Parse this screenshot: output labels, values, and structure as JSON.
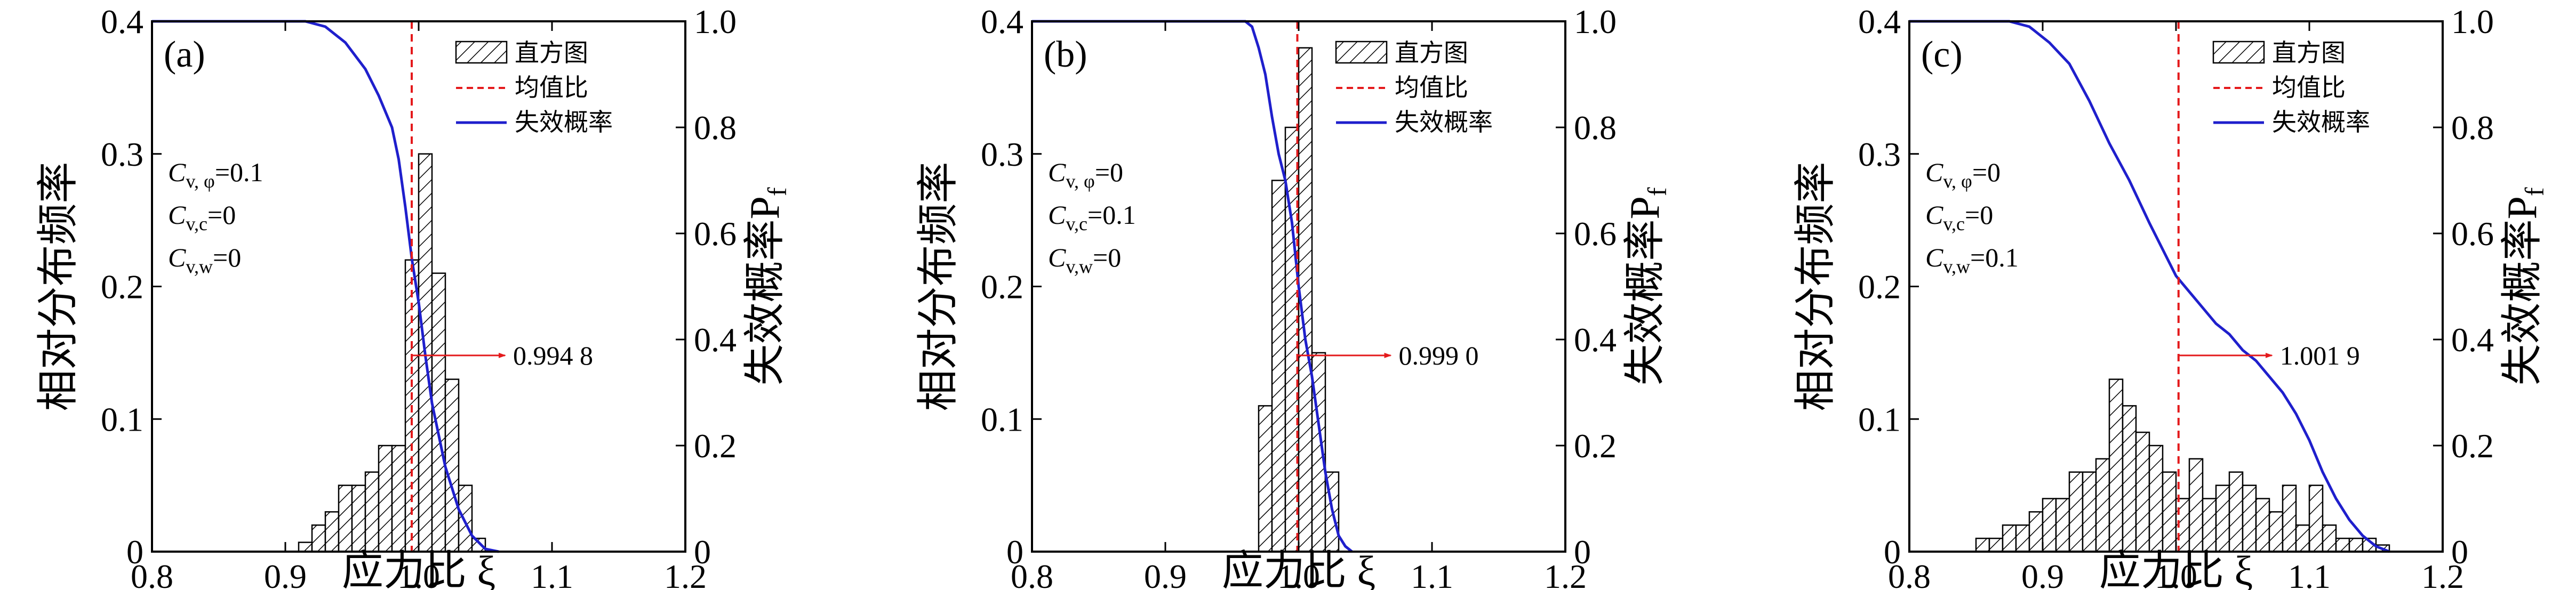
{
  "figure": {
    "xlabel": "应力比 ξ",
    "ylabel_left": "相对分布频率",
    "ylabel_right": "失效概率P",
    "ylabel_right_sub": "f",
    "legend": [
      "直方图",
      "均值比",
      "失效概率"
    ],
    "colors": {
      "histogram": "#000000",
      "mean_line": "#e41a1c",
      "failure_curve": "#1f1fcc",
      "arrow": "#e41a1c"
    },
    "x_ticks": [
      "0.8",
      "0.9",
      "1.0",
      "1.1",
      "1.2"
    ],
    "y_left_ticks": [
      "0",
      "0.1",
      "0.2",
      "0.3",
      "0.4"
    ],
    "y_right_ticks": [
      "0",
      "0.2",
      "0.4",
      "0.6",
      "0.8",
      "1.0"
    ]
  },
  "chart_data": [
    {
      "type": "bar",
      "panel": "(a)",
      "params": [
        {
          "main": "C",
          "sub": "v, φ",
          "value": "=0.1"
        },
        {
          "main": "C",
          "sub": "v,c",
          "value": "=0"
        },
        {
          "main": "C",
          "sub": "v,w",
          "value": "=0"
        }
      ],
      "xlim": [
        0.8,
        1.2
      ],
      "ylim": [
        0,
        0.4
      ],
      "y2lim": [
        0,
        1.0
      ],
      "bin_width": 0.01,
      "bins": [
        {
          "x": 0.91,
          "v": 0.007
        },
        {
          "x": 0.92,
          "v": 0.02
        },
        {
          "x": 0.93,
          "v": 0.03
        },
        {
          "x": 0.94,
          "v": 0.05
        },
        {
          "x": 0.95,
          "v": 0.05
        },
        {
          "x": 0.96,
          "v": 0.06
        },
        {
          "x": 0.97,
          "v": 0.08
        },
        {
          "x": 0.98,
          "v": 0.08
        },
        {
          "x": 0.99,
          "v": 0.22
        },
        {
          "x": 1.0,
          "v": 0.3
        },
        {
          "x": 1.01,
          "v": 0.21
        },
        {
          "x": 1.02,
          "v": 0.13
        },
        {
          "x": 1.03,
          "v": 0.05
        },
        {
          "x": 1.04,
          "v": 0.01
        }
      ],
      "mean_ratio": 0.9948,
      "mean_label": "0.994 8",
      "arrow_y": 0.37,
      "failure_curve": {
        "x": [
          0.8,
          0.9,
          0.915,
          0.93,
          0.945,
          0.96,
          0.97,
          0.98,
          0.985,
          0.99,
          0.995,
          1.0,
          1.005,
          1.01,
          1.02,
          1.03,
          1.04,
          1.05,
          1.06
        ],
        "y": [
          1.0,
          1.0,
          1.0,
          0.99,
          0.96,
          0.91,
          0.86,
          0.8,
          0.74,
          0.65,
          0.55,
          0.47,
          0.37,
          0.28,
          0.16,
          0.08,
          0.03,
          0.005,
          0.0
        ]
      }
    },
    {
      "type": "bar",
      "panel": "(b)",
      "params": [
        {
          "main": "C",
          "sub": "v, φ",
          "value": "=0"
        },
        {
          "main": "C",
          "sub": "v,c",
          "value": "=0.1"
        },
        {
          "main": "C",
          "sub": "v,w",
          "value": "=0"
        }
      ],
      "xlim": [
        0.8,
        1.2
      ],
      "ylim": [
        0,
        0.4
      ],
      "y2lim": [
        0,
        1.0
      ],
      "bin_width": 0.01,
      "bins": [
        {
          "x": 0.97,
          "v": 0.11
        },
        {
          "x": 0.98,
          "v": 0.28
        },
        {
          "x": 0.99,
          "v": 0.32
        },
        {
          "x": 1.0,
          "v": 0.38
        },
        {
          "x": 1.01,
          "v": 0.15
        },
        {
          "x": 1.02,
          "v": 0.06
        }
      ],
      "mean_ratio": 0.999,
      "mean_label": "0.999 0",
      "arrow_y": 0.37,
      "failure_curve": {
        "x": [
          0.8,
          0.96,
          0.965,
          0.97,
          0.975,
          0.98,
          0.985,
          0.99,
          0.995,
          1.0,
          1.005,
          1.01,
          1.015,
          1.02,
          1.025,
          1.03,
          1.035,
          1.04
        ],
        "y": [
          1.0,
          1.0,
          0.99,
          0.95,
          0.9,
          0.82,
          0.75,
          0.7,
          0.62,
          0.5,
          0.4,
          0.33,
          0.24,
          0.15,
          0.08,
          0.03,
          0.01,
          0.0
        ]
      }
    },
    {
      "type": "bar",
      "panel": "(c)",
      "params": [
        {
          "main": "C",
          "sub": "v, φ",
          "value": "=0"
        },
        {
          "main": "C",
          "sub": "v,c",
          "value": "=0"
        },
        {
          "main": "C",
          "sub": "v,w",
          "value": "=0.1"
        }
      ],
      "xlim": [
        0.8,
        1.2
      ],
      "ylim": [
        0,
        0.4
      ],
      "y2lim": [
        0,
        1.0
      ],
      "bin_width": 0.01,
      "bins": [
        {
          "x": 0.85,
          "v": 0.01
        },
        {
          "x": 0.86,
          "v": 0.01
        },
        {
          "x": 0.87,
          "v": 0.02
        },
        {
          "x": 0.88,
          "v": 0.02
        },
        {
          "x": 0.89,
          "v": 0.03
        },
        {
          "x": 0.9,
          "v": 0.04
        },
        {
          "x": 0.91,
          "v": 0.04
        },
        {
          "x": 0.92,
          "v": 0.06
        },
        {
          "x": 0.93,
          "v": 0.06
        },
        {
          "x": 0.94,
          "v": 0.07
        },
        {
          "x": 0.95,
          "v": 0.13
        },
        {
          "x": 0.96,
          "v": 0.11
        },
        {
          "x": 0.97,
          "v": 0.09
        },
        {
          "x": 0.98,
          "v": 0.08
        },
        {
          "x": 0.99,
          "v": 0.06
        },
        {
          "x": 1.0,
          "v": 0.04
        },
        {
          "x": 1.01,
          "v": 0.07
        },
        {
          "x": 1.02,
          "v": 0.04
        },
        {
          "x": 1.03,
          "v": 0.05
        },
        {
          "x": 1.04,
          "v": 0.06
        },
        {
          "x": 1.05,
          "v": 0.05
        },
        {
          "x": 1.06,
          "v": 0.04
        },
        {
          "x": 1.07,
          "v": 0.03
        },
        {
          "x": 1.08,
          "v": 0.05
        },
        {
          "x": 1.09,
          "v": 0.02
        },
        {
          "x": 1.1,
          "v": 0.05
        },
        {
          "x": 1.11,
          "v": 0.02
        },
        {
          "x": 1.12,
          "v": 0.01
        },
        {
          "x": 1.13,
          "v": 0.01
        },
        {
          "x": 1.14,
          "v": 0.01
        },
        {
          "x": 1.15,
          "v": 0.005
        }
      ],
      "mean_ratio": 1.0019,
      "mean_label": "1.001 9",
      "arrow_y": 0.37,
      "failure_curve": {
        "x": [
          0.8,
          0.875,
          0.89,
          0.905,
          0.92,
          0.935,
          0.95,
          0.965,
          0.98,
          0.99,
          1.0,
          1.01,
          1.02,
          1.03,
          1.04,
          1.05,
          1.06,
          1.07,
          1.08,
          1.09,
          1.1,
          1.11,
          1.12,
          1.13,
          1.14,
          1.15,
          1.16
        ],
        "y": [
          1.0,
          1.0,
          0.99,
          0.96,
          0.92,
          0.85,
          0.77,
          0.7,
          0.62,
          0.57,
          0.52,
          0.49,
          0.46,
          0.43,
          0.41,
          0.38,
          0.36,
          0.33,
          0.3,
          0.26,
          0.21,
          0.15,
          0.1,
          0.06,
          0.03,
          0.01,
          0.0
        ]
      }
    }
  ]
}
